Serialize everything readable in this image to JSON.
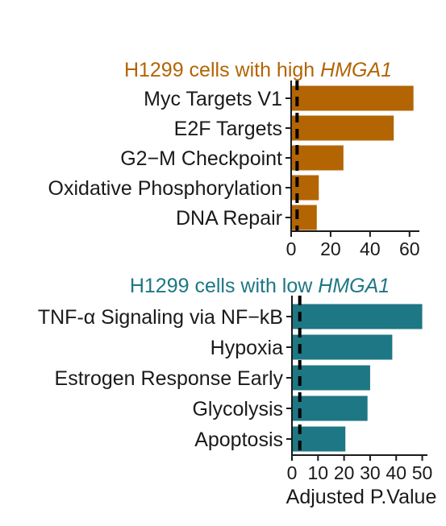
{
  "chart_data": [
    {
      "type": "bar",
      "orientation": "horizontal",
      "title": {
        "prefix": "H1299 cells with high ",
        "emphasis": "HMGA1"
      },
      "title_color": "#b36504",
      "bar_color": "#b36504",
      "categories": [
        "Myc Targets V1",
        "E2F Targets",
        "G2−M Checkpoint",
        "Oxidative Phosphorylation",
        "DNA Repair"
      ],
      "values": [
        62,
        52,
        26.5,
        14,
        13
      ],
      "xlim": [
        0,
        65
      ],
      "xticks": [
        "0",
        "20",
        "40",
        "60"
      ],
      "xtick_values": [
        0,
        20,
        40,
        60
      ],
      "reference_line": 3,
      "xlabel": ""
    },
    {
      "type": "bar",
      "orientation": "horizontal",
      "title": {
        "prefix": "H1299 cells with low ",
        "emphasis": "HMGA1"
      },
      "title_color": "#1e7784",
      "bar_color": "#1e7784",
      "categories": [
        "TNF-α Signaling via NF−kB",
        "Hypoxia",
        "Estrogen Response Early",
        "Glycolysis",
        "Apoptosis"
      ],
      "values": [
        50,
        38.5,
        30,
        29,
        20.5
      ],
      "xlim": [
        0,
        52
      ],
      "xticks": [
        "0",
        "10",
        "20",
        "30",
        "40",
        "50"
      ],
      "xtick_values": [
        0,
        10,
        20,
        30,
        40,
        50
      ],
      "reference_line": 3,
      "xlabel": "Adjusted P.Value"
    }
  ]
}
